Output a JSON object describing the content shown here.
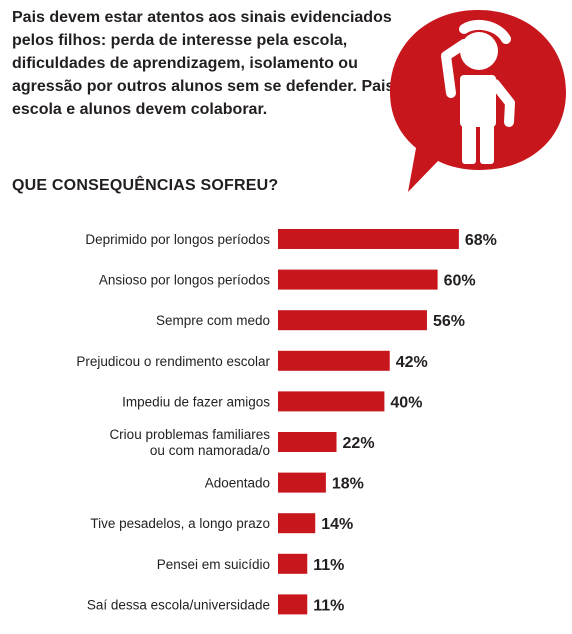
{
  "intro_text": "Pais devem estar atentos aos sinais evidenciados pelos filhos: perda de interesse pela escola, dificuldades de aprendizagem, isolamento ou agressão por outros alunos sem se defender. Pais, escola e alunos devem colaborar.",
  "icon": "person-scratching-head-icon",
  "colors": {
    "accent": "#c8161d",
    "text": "#231f20",
    "background": "#ffffff"
  },
  "chart_data": {
    "type": "bar",
    "orientation": "horizontal",
    "title": "QUE CONSEQUÊNCIAS SOFREU?",
    "categories": [
      [
        "Deprimido por longos períodos"
      ],
      [
        "Ansioso por longos períodos"
      ],
      [
        "Sempre com medo"
      ],
      [
        "Prejudicou o rendimento escolar"
      ],
      [
        "Impediu de fazer amigos"
      ],
      [
        "Criou problemas familiares",
        "ou com namorada/o"
      ],
      [
        "Adoentado"
      ],
      [
        "Tive pesadelos, a longo prazo"
      ],
      [
        "Pensei em suicídio"
      ],
      [
        "Saí dessa escola/universidade"
      ]
    ],
    "values": [
      68,
      60,
      56,
      42,
      40,
      22,
      18,
      14,
      11,
      11
    ],
    "value_labels": [
      "68%",
      "60%",
      "56%",
      "42%",
      "40%",
      "22%",
      "18%",
      "14%",
      "11%",
      "11%"
    ],
    "unit": "%",
    "grid": false,
    "legend": "none"
  }
}
